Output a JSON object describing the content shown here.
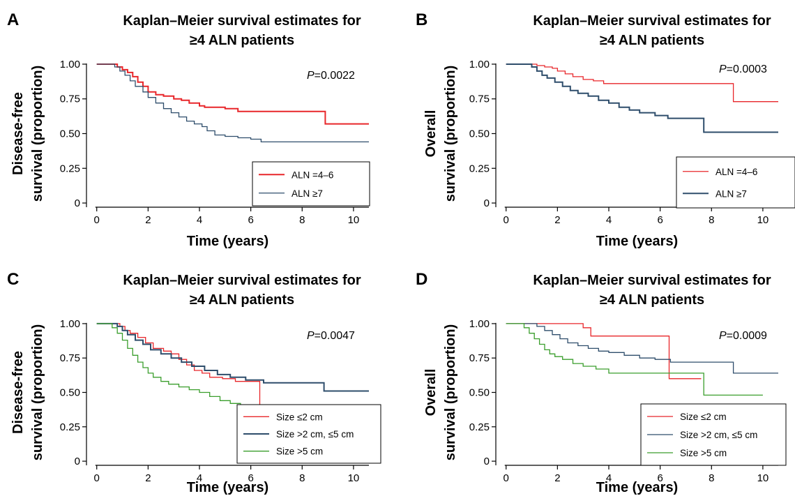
{
  "colors": {
    "red": "#e8262a",
    "navy": "#2e4d6b",
    "green": "#3a9e2c",
    "axis": "#000000"
  },
  "chart_data": [
    {
      "panel": "A",
      "type": "line",
      "step": true,
      "title_lines": [
        "Kaplan–Meier survival estimates for",
        "≥4 ALN patients"
      ],
      "xlabel": "Time (years)",
      "ylabel_lines": [
        "Disease-free",
        "survival (proportion)"
      ],
      "xlim": [
        -0.4,
        10.6
      ],
      "ylim": [
        -0.03,
        1.03
      ],
      "xticks": [
        0,
        2,
        4,
        6,
        8,
        10
      ],
      "yticks": [
        0,
        0.25,
        0.5,
        0.75,
        1.0
      ],
      "ytick_labels": [
        "0",
        "0.25",
        "0.50",
        "0.75",
        "1.00"
      ],
      "p_label": "P",
      "p_text": "=0.0022",
      "legend_position": "bottom-right",
      "series": [
        {
          "name": "ALN =4–6",
          "color": "red",
          "width": 2,
          "points": [
            [
              0,
              1
            ],
            [
              0.6,
              1
            ],
            [
              0.8,
              0.98
            ],
            [
              1.0,
              0.96
            ],
            [
              1.2,
              0.94
            ],
            [
              1.4,
              0.91
            ],
            [
              1.6,
              0.87
            ],
            [
              1.8,
              0.84
            ],
            [
              2.0,
              0.8
            ],
            [
              2.3,
              0.78
            ],
            [
              2.6,
              0.77
            ],
            [
              3.0,
              0.75
            ],
            [
              3.3,
              0.74
            ],
            [
              3.6,
              0.72
            ],
            [
              4.0,
              0.7
            ],
            [
              4.2,
              0.69
            ],
            [
              5.0,
              0.68
            ],
            [
              5.5,
              0.66
            ],
            [
              8.9,
              0.66
            ],
            [
              8.9,
              0.57
            ],
            [
              10.6,
              0.57
            ]
          ]
        },
        {
          "name": "ALN ≥7",
          "color": "navy",
          "width": 1.3,
          "points": [
            [
              0,
              1
            ],
            [
              0.5,
              1
            ],
            [
              0.7,
              0.98
            ],
            [
              0.9,
              0.95
            ],
            [
              1.1,
              0.92
            ],
            [
              1.3,
              0.88
            ],
            [
              1.5,
              0.84
            ],
            [
              1.8,
              0.8
            ],
            [
              2.0,
              0.76
            ],
            [
              2.3,
              0.72
            ],
            [
              2.6,
              0.68
            ],
            [
              2.9,
              0.65
            ],
            [
              3.2,
              0.62
            ],
            [
              3.5,
              0.59
            ],
            [
              3.8,
              0.57
            ],
            [
              4.1,
              0.55
            ],
            [
              4.3,
              0.52
            ],
            [
              4.6,
              0.49
            ],
            [
              5.0,
              0.48
            ],
            [
              5.5,
              0.47
            ],
            [
              6.0,
              0.46
            ],
            [
              6.4,
              0.44
            ],
            [
              10.6,
              0.44
            ]
          ]
        }
      ]
    },
    {
      "panel": "B",
      "type": "line",
      "step": true,
      "title_lines": [
        "Kaplan–Meier survival estimates for",
        "≥4 ALN patients"
      ],
      "xlabel": "Time (years)",
      "ylabel_lines": [
        "Overall",
        "survival (proportion)"
      ],
      "xlim": [
        -0.4,
        10.6
      ],
      "ylim": [
        -0.03,
        1.03
      ],
      "xticks": [
        0,
        2,
        4,
        6,
        8,
        10
      ],
      "yticks": [
        0,
        0.25,
        0.5,
        0.75,
        1.0
      ],
      "ytick_labels": [
        "0",
        "0.25",
        "0.50",
        "0.75",
        "1.00"
      ],
      "p_label": "P",
      "p_text": "=0.0003",
      "legend_position": "bottom-right",
      "series": [
        {
          "name": "ALN =4–6",
          "color": "red",
          "width": 1.3,
          "points": [
            [
              0,
              1
            ],
            [
              1.0,
              1
            ],
            [
              1.2,
              0.99
            ],
            [
              1.5,
              0.98
            ],
            [
              1.8,
              0.97
            ],
            [
              2.0,
              0.95
            ],
            [
              2.3,
              0.93
            ],
            [
              2.6,
              0.91
            ],
            [
              3.0,
              0.89
            ],
            [
              3.4,
              0.88
            ],
            [
              3.8,
              0.86
            ],
            [
              8.85,
              0.86
            ],
            [
              8.85,
              0.73
            ],
            [
              10.6,
              0.73
            ]
          ]
        },
        {
          "name": "ALN ≥7",
          "color": "navy",
          "width": 2,
          "points": [
            [
              0,
              1
            ],
            [
              0.8,
              1
            ],
            [
              1.0,
              0.98
            ],
            [
              1.2,
              0.95
            ],
            [
              1.4,
              0.92
            ],
            [
              1.6,
              0.9
            ],
            [
              1.9,
              0.87
            ],
            [
              2.2,
              0.84
            ],
            [
              2.5,
              0.81
            ],
            [
              2.8,
              0.79
            ],
            [
              3.2,
              0.77
            ],
            [
              3.6,
              0.74
            ],
            [
              4.0,
              0.72
            ],
            [
              4.4,
              0.69
            ],
            [
              4.8,
              0.67
            ],
            [
              5.2,
              0.65
            ],
            [
              5.8,
              0.63
            ],
            [
              6.3,
              0.61
            ],
            [
              7.7,
              0.61
            ],
            [
              7.7,
              0.51
            ],
            [
              10.6,
              0.51
            ]
          ]
        }
      ]
    },
    {
      "panel": "C",
      "type": "line",
      "step": true,
      "title_lines": [
        "Kaplan–Meier survival estimates for",
        "≥4 ALN patients"
      ],
      "xlabel": "Time (years)",
      "ylabel_lines": [
        "Disease-free",
        "survival (proportion)"
      ],
      "xlim": [
        -0.4,
        10.6
      ],
      "ylim": [
        -0.03,
        1.03
      ],
      "xticks": [
        0,
        2,
        4,
        6,
        8,
        10
      ],
      "yticks": [
        0,
        0.25,
        0.5,
        0.75,
        1.0
      ],
      "ytick_labels": [
        "0",
        "0.25",
        "0.50",
        "0.75",
        "1.00"
      ],
      "p_label": "P",
      "p_text": "=0.0047",
      "legend_position": "bottom-right",
      "series": [
        {
          "name": "Size ≤2 cm",
          "color": "red",
          "width": 1.3,
          "points": [
            [
              0,
              1
            ],
            [
              0.7,
              1
            ],
            [
              0.9,
              0.98
            ],
            [
              1.1,
              0.95
            ],
            [
              1.3,
              0.93
            ],
            [
              1.6,
              0.9
            ],
            [
              1.9,
              0.86
            ],
            [
              2.2,
              0.82
            ],
            [
              2.6,
              0.8
            ],
            [
              2.9,
              0.78
            ],
            [
              3.2,
              0.74
            ],
            [
              3.5,
              0.7
            ],
            [
              3.8,
              0.66
            ],
            [
              4.1,
              0.64
            ],
            [
              4.4,
              0.61
            ],
            [
              4.9,
              0.6
            ],
            [
              5.4,
              0.58
            ],
            [
              6.35,
              0.58
            ],
            [
              6.35,
              0.39
            ],
            [
              7.6,
              0.39
            ]
          ]
        },
        {
          "name": "Size >2 cm, ≤5 cm",
          "color": "navy",
          "width": 2,
          "points": [
            [
              0,
              1
            ],
            [
              0.6,
              1
            ],
            [
              0.8,
              0.98
            ],
            [
              1.0,
              0.95
            ],
            [
              1.2,
              0.92
            ],
            [
              1.5,
              0.88
            ],
            [
              1.8,
              0.85
            ],
            [
              2.1,
              0.81
            ],
            [
              2.5,
              0.78
            ],
            [
              2.9,
              0.75
            ],
            [
              3.3,
              0.72
            ],
            [
              3.7,
              0.69
            ],
            [
              4.2,
              0.66
            ],
            [
              4.7,
              0.63
            ],
            [
              5.2,
              0.61
            ],
            [
              5.8,
              0.59
            ],
            [
              6.5,
              0.57
            ],
            [
              8.85,
              0.57
            ],
            [
              8.85,
              0.51
            ],
            [
              10.6,
              0.51
            ]
          ]
        },
        {
          "name": "Size >5 cm",
          "color": "green",
          "width": 1.3,
          "points": [
            [
              0,
              1
            ],
            [
              0.4,
              1
            ],
            [
              0.6,
              0.97
            ],
            [
              0.8,
              0.93
            ],
            [
              1.0,
              0.88
            ],
            [
              1.2,
              0.82
            ],
            [
              1.4,
              0.77
            ],
            [
              1.6,
              0.72
            ],
            [
              1.8,
              0.68
            ],
            [
              2.0,
              0.64
            ],
            [
              2.2,
              0.61
            ],
            [
              2.5,
              0.58
            ],
            [
              2.8,
              0.56
            ],
            [
              3.2,
              0.54
            ],
            [
              3.6,
              0.52
            ],
            [
              4.0,
              0.5
            ],
            [
              4.4,
              0.47
            ],
            [
              4.8,
              0.44
            ],
            [
              5.2,
              0.42
            ],
            [
              5.6,
              0.41
            ],
            [
              10.0,
              0.41
            ]
          ]
        }
      ]
    },
    {
      "panel": "D",
      "type": "line",
      "step": true,
      "title_lines": [
        "Kaplan–Meier survival estimates for",
        "≥4 ALN patients"
      ],
      "xlabel": "Time (years)",
      "ylabel_lines": [
        "Overall",
        "survival (proportion)"
      ],
      "xlim": [
        -0.4,
        10.6
      ],
      "ylim": [
        -0.03,
        1.03
      ],
      "xticks": [
        0,
        2,
        4,
        6,
        8,
        10
      ],
      "yticks": [
        0,
        0.25,
        0.5,
        0.75,
        1.0
      ],
      "ytick_labels": [
        "0",
        "0.25",
        "0.50",
        "0.75",
        "1.00"
      ],
      "p_label": "P",
      "p_text": "=0.0009",
      "legend_position": "bottom-right",
      "series": [
        {
          "name": "Size ≤2 cm",
          "color": "red",
          "width": 1.3,
          "points": [
            [
              0,
              1
            ],
            [
              3.0,
              1
            ],
            [
              3.0,
              0.97
            ],
            [
              3.3,
              0.97
            ],
            [
              3.3,
              0.91
            ],
            [
              6.35,
              0.91
            ],
            [
              6.35,
              0.6
            ],
            [
              7.6,
              0.6
            ]
          ]
        },
        {
          "name": "Size >2 cm, ≤5 cm",
          "color": "navy",
          "width": 1.3,
          "points": [
            [
              0,
              1
            ],
            [
              1.0,
              1
            ],
            [
              1.2,
              0.98
            ],
            [
              1.5,
              0.95
            ],
            [
              1.8,
              0.92
            ],
            [
              2.1,
              0.89
            ],
            [
              2.4,
              0.86
            ],
            [
              2.8,
              0.84
            ],
            [
              3.2,
              0.82
            ],
            [
              3.6,
              0.8
            ],
            [
              4.0,
              0.79
            ],
            [
              4.6,
              0.77
            ],
            [
              5.2,
              0.75
            ],
            [
              5.8,
              0.74
            ],
            [
              6.4,
              0.72
            ],
            [
              8.85,
              0.72
            ],
            [
              8.85,
              0.64
            ],
            [
              10.6,
              0.64
            ]
          ]
        },
        {
          "name": "Size >5 cm",
          "color": "green",
          "width": 1.3,
          "points": [
            [
              0,
              1
            ],
            [
              0.5,
              1
            ],
            [
              0.7,
              0.97
            ],
            [
              0.9,
              0.93
            ],
            [
              1.1,
              0.89
            ],
            [
              1.3,
              0.85
            ],
            [
              1.5,
              0.81
            ],
            [
              1.7,
              0.78
            ],
            [
              1.9,
              0.76
            ],
            [
              2.2,
              0.74
            ],
            [
              2.6,
              0.71
            ],
            [
              3.0,
              0.69
            ],
            [
              3.5,
              0.67
            ],
            [
              4.0,
              0.64
            ],
            [
              7.7,
              0.64
            ],
            [
              7.7,
              0.48
            ],
            [
              10.0,
              0.48
            ]
          ]
        }
      ]
    }
  ]
}
